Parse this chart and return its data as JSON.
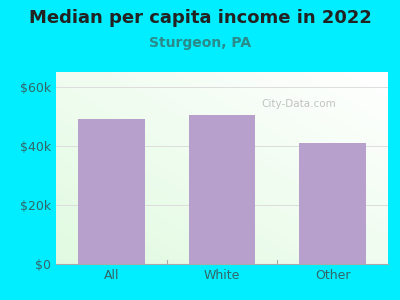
{
  "title": "Median per capita income in 2022",
  "subtitle": "Sturgeon, PA",
  "categories": [
    "All",
    "White",
    "Other"
  ],
  "values": [
    49000,
    50500,
    41000
  ],
  "bar_color": "#b8a0cc",
  "outer_bg": "#00eeff",
  "title_color": "#222222",
  "subtitle_color": "#2a8a8a",
  "axis_label_color": "#336666",
  "ylim": [
    0,
    65000
  ],
  "yticks": [
    0,
    20000,
    40000,
    60000
  ],
  "ytick_labels": [
    "$0",
    "$20k",
    "$40k",
    "$60k"
  ],
  "watermark": "City-Data.com",
  "title_fontsize": 13,
  "subtitle_fontsize": 10
}
